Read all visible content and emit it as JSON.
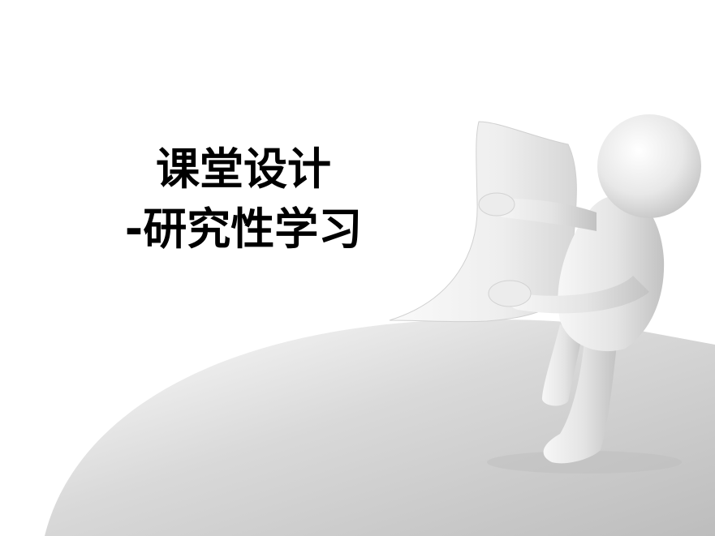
{
  "slide": {
    "title_line_1": "课堂设计",
    "title_line_2": "-研究性学习",
    "illustration": "white-3d-figure-peeling-page"
  },
  "colors": {
    "background": "#ffffff",
    "title": "#000000",
    "page_shadow": "#c8c8c8",
    "figure": "#e6e6e6"
  }
}
